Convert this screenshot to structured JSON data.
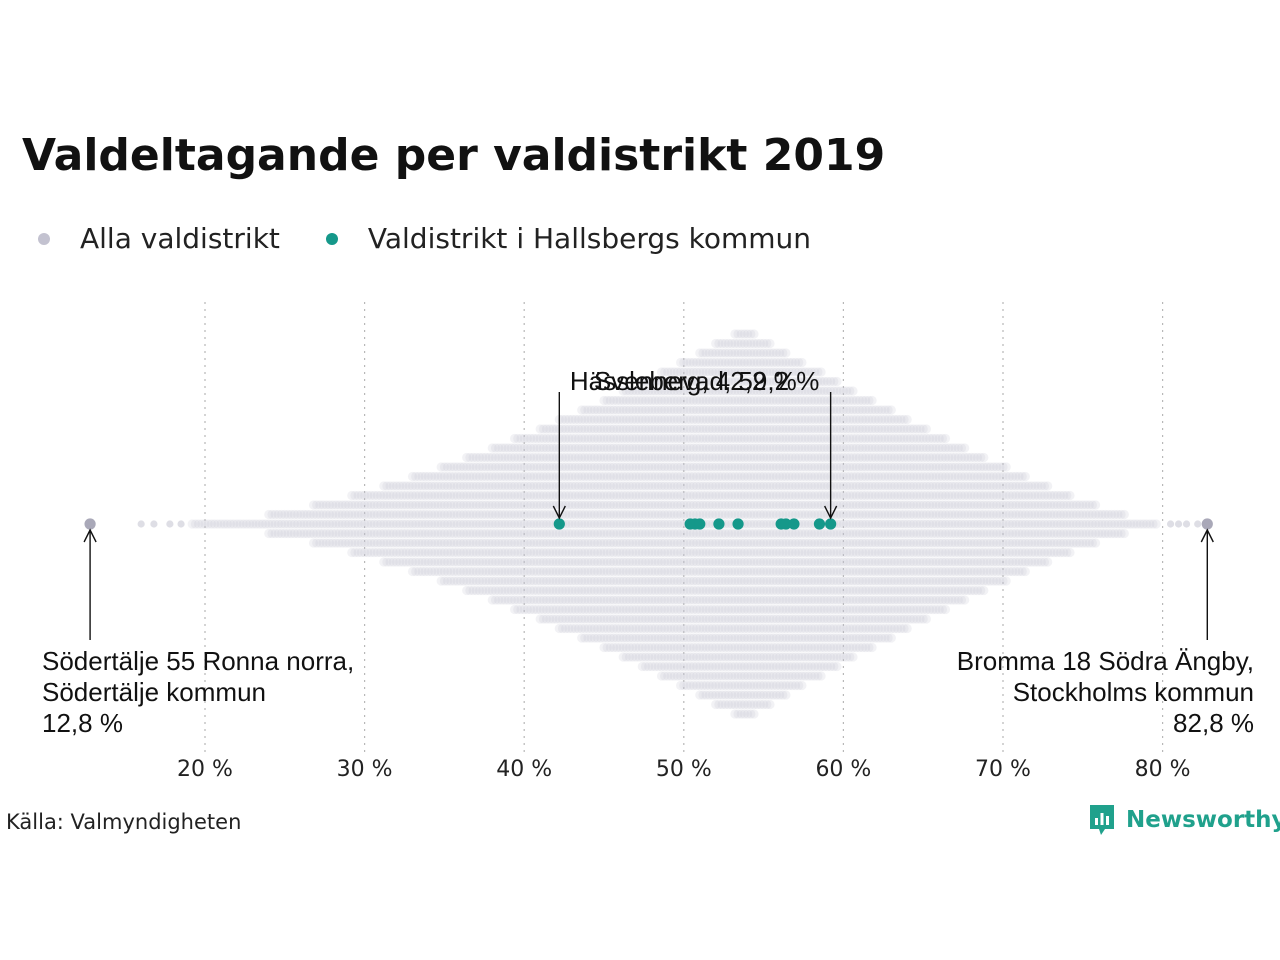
{
  "title": "Valdeltagande per valdistrikt 2019",
  "legend": [
    {
      "label": "Alla valdistrikt",
      "color": "#c3c2d0"
    },
    {
      "label": "Valdistrikt i Hallsbergs kommun",
      "color": "#15988a"
    }
  ],
  "source": "Källa: Valmyndigheten",
  "brand": {
    "name": "Newsworthy",
    "icon": "newsworthy-logo-icon",
    "color": "#20a18c"
  },
  "chart_data": {
    "type": "scatter",
    "subtype": "beeswarm",
    "x_axis": {
      "ticks": [
        20,
        30,
        40,
        50,
        60,
        70,
        80
      ],
      "tick_labels": [
        "20 %",
        "30 %",
        "40 %",
        "50 %",
        "60 %",
        "70 %",
        "80 %"
      ],
      "range": [
        10,
        85
      ],
      "grid": "vertical dotted"
    },
    "series": [
      {
        "name": "Alla valdistrikt",
        "color": "#c3c2d0",
        "distribution": {
          "min": 12.8,
          "max": 82.8,
          "peak": 53.8
        },
        "outliers": [
          12.8,
          16.0,
          16.8,
          17.8,
          18.5,
          80.5,
          81.0,
          81.5,
          82.2,
          82.8
        ]
      },
      {
        "name": "Valdistrikt i Hallsbergs kommun",
        "color": "#15988a",
        "values": [
          42.2,
          50.4,
          50.7,
          51.0,
          52.2,
          53.4,
          56.1,
          56.4,
          56.9,
          58.5,
          59.2
        ]
      }
    ],
    "annotations": [
      {
        "x": 42.2,
        "text": "Hässleberg, 42,2 %",
        "position": "above"
      },
      {
        "x": 59.2,
        "text": "Svennevad, 59,2 %",
        "position": "above"
      },
      {
        "x": 12.8,
        "lines": [
          "Södertälje 55 Ronna norra,",
          "Södertälje kommun",
          "12,8 %"
        ],
        "position": "below-left"
      },
      {
        "x": 82.8,
        "lines": [
          "Bromma 18 Södra Ängby,",
          "Stockholms kommun",
          "82,8 %"
        ],
        "position": "below-right"
      }
    ]
  }
}
